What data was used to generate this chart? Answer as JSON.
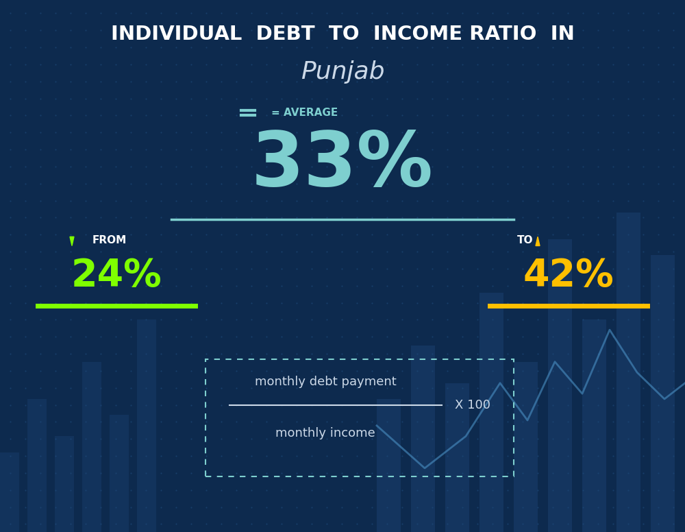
{
  "title_line1": "INDIVIDUAL  DEBT  TO  INCOME RATIO  IN",
  "title_line2": "Punjab",
  "bg_color": "#0d2a4e",
  "title_color": "#ffffff",
  "title2_color": "#ccd9e8",
  "avg_label": "= AVERAGE",
  "avg_label_color": "#7ecfcf",
  "avg_value": "33%",
  "avg_value_color": "#7ecfcf",
  "avg_line_color": "#7ecfcf",
  "from_label": "FROM",
  "from_arrow_color": "#7fff00",
  "from_value": "24%",
  "from_value_color": "#7fff00",
  "from_line_color": "#7fff00",
  "to_label": "TO",
  "to_arrow_color": "#ffc000",
  "to_value": "42%",
  "to_value_color": "#ffc000",
  "to_line_color": "#ffc000",
  "formula_numerator": "monthly debt payment",
  "formula_denominator": "monthly income",
  "formula_multiplier": "X 100",
  "formula_text_color": "#ccd9e8",
  "formula_box_color": "#7ecfcf",
  "dot_matrix_color": "#1e4a7a",
  "bar_chart_color": "#1a3f6e",
  "line_chart_color": "#4a90c4"
}
